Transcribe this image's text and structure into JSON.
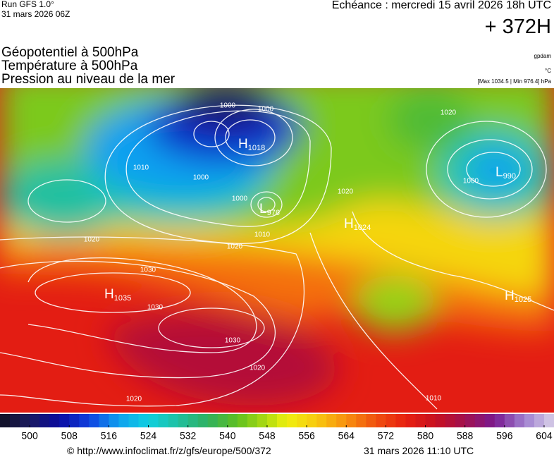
{
  "header": {
    "run": "Run GFS 1.0°",
    "run_date": "31 mars 2026 06Z",
    "valid": "Echéance : mercredi 15 avril 2026 18h UTC",
    "lead": "+ 372H"
  },
  "titles": [
    "Géopotentiel à 500hPa",
    "Température à 500hPa",
    "Pression au niveau de la mer"
  ],
  "units": [
    "gpdam",
    "°C",
    "[Max 1034.5 | Min 976.4] hPa"
  ],
  "centers": [
    {
      "letter": "H",
      "value": 1018
    },
    {
      "letter": "L",
      "value": 976
    },
    {
      "letter": "L",
      "value": 990
    },
    {
      "letter": "H",
      "value": 1035
    },
    {
      "letter": "H",
      "value": 1024
    },
    {
      "letter": "H",
      "value": 1025
    }
  ],
  "isobar_labels": [
    1000,
    1000,
    1010,
    1000,
    1000,
    1010,
    1020,
    1020,
    1020,
    1030,
    1030,
    1030,
    1020,
    1020,
    1010,
    1000,
    1020
  ],
  "colorbar": {
    "lim": [
      494,
      606
    ],
    "ticks": [
      500,
      508,
      516,
      524,
      532,
      540,
      548,
      556,
      564,
      572,
      580,
      588,
      596,
      604
    ]
  },
  "footer": {
    "source": "© http://www.infoclimat.fr/z/gfs/europe/500/372",
    "timestamp": "31 mars 2026 11:10 UTC"
  }
}
